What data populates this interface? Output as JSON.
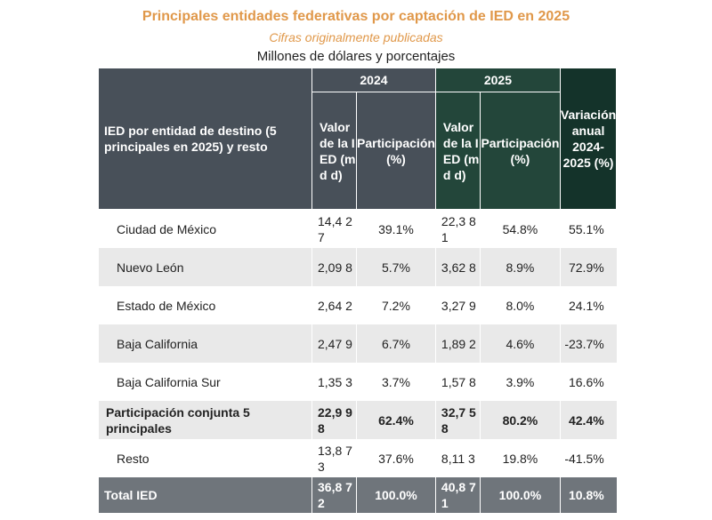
{
  "header": {
    "title": "Principales entidades federativas por captación de IED en 2025",
    "subtitle": "Cifras originalmente publicadas",
    "units": "Millones de dólares y porcentajes"
  },
  "table": {
    "col_main": "IED por entidad de destino (5 principales en 2025) y resto",
    "year_a": "2024",
    "year_b": "2025",
    "col_var": "Variación anual 2024-2025 (%)",
    "sub_value": "Valor de la IED (md d)",
    "sub_part": "Participación (%)",
    "rows": [
      {
        "name": "Ciudad de México",
        "v2024": "14,4 27",
        "p2024": "39.1%",
        "v2025": "22,3 81",
        "p2025": "54.8%",
        "var": "55.1%"
      },
      {
        "name": "Nuevo León",
        "v2024": "2,09 8",
        "p2024": "5.7%",
        "v2025": "3,62 8",
        "p2025": "8.9%",
        "var": "72.9%"
      },
      {
        "name": "Estado de México",
        "v2024": "2,64 2",
        "p2024": "7.2%",
        "v2025": "3,27 9",
        "p2025": "8.0%",
        "var": "24.1%"
      },
      {
        "name": "Baja California",
        "v2024": "2,47 9",
        "p2024": "6.7%",
        "v2025": "1,89 2",
        "p2025": "4.6%",
        "var": "-23.7%"
      },
      {
        "name": "Baja California Sur",
        "v2024": "1,35 3",
        "p2024": "3.7%",
        "v2025": "1,57 8",
        "p2025": "3.9%",
        "var": "16.6%"
      },
      {
        "name": "Participación conjunta 5 principales",
        "v2024": "22,9 98",
        "p2024": "62.4%",
        "v2025": "32,7 58",
        "p2025": "80.2%",
        "var": "42.4%"
      },
      {
        "name": "Resto",
        "v2024": "13,8 73",
        "p2024": "37.6%",
        "v2025": "8,11 3",
        "p2025": "19.8%",
        "var": "-41.5%"
      },
      {
        "name": "Total IED",
        "v2024": "36,8 72",
        "p2024": "100.0%",
        "v2025": "40,8 71",
        "p2025": "100.0%",
        "var": "10.8%"
      }
    ]
  }
}
